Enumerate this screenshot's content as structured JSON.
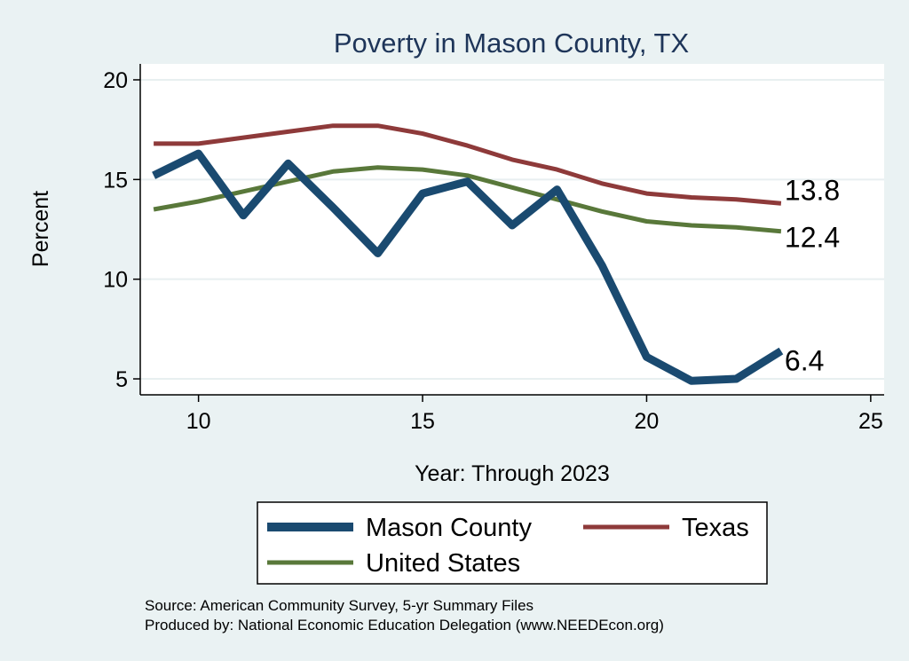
{
  "chart_data": {
    "type": "line",
    "title": "Poverty in Mason County, TX",
    "xlabel": "Year: Through 2023",
    "ylabel": "Percent",
    "xlim": [
      8.7,
      25.3
    ],
    "ylim": [
      4.2,
      20.8
    ],
    "xticks": [
      10,
      15,
      20,
      25
    ],
    "yticks": [
      5,
      10,
      15,
      20
    ],
    "grid": true,
    "x": [
      9,
      10,
      11,
      12,
      13,
      14,
      15,
      16,
      17,
      18,
      19,
      20,
      21,
      22,
      23
    ],
    "series": [
      {
        "name": "Mason County",
        "color": "#1a4a70",
        "width": 9,
        "values": [
          15.2,
          16.3,
          13.2,
          15.8,
          13.6,
          11.3,
          14.3,
          14.9,
          12.7,
          14.5,
          10.7,
          6.1,
          4.9,
          5.0,
          6.4
        ],
        "end_label": "6.4"
      },
      {
        "name": "Texas",
        "color": "#8e3a3a",
        "width": 5,
        "values": [
          16.8,
          16.8,
          17.1,
          17.4,
          17.7,
          17.7,
          17.3,
          16.7,
          16.0,
          15.5,
          14.8,
          14.3,
          14.1,
          14.0,
          13.8
        ],
        "end_label": "13.8"
      },
      {
        "name": "United States",
        "color": "#59783a",
        "width": 5,
        "values": [
          13.5,
          13.9,
          14.4,
          14.9,
          15.4,
          15.6,
          15.5,
          15.2,
          14.6,
          14.0,
          13.4,
          12.9,
          12.7,
          12.6,
          12.4
        ],
        "end_label": "12.4"
      }
    ],
    "legend": {
      "position": "bottom",
      "entries": [
        "Mason County",
        "Texas",
        "United States"
      ]
    }
  },
  "notes": {
    "source": "Source: American Community Survey, 5-yr Summary Files",
    "produced": "Produced by: National Economic Education Delegation (www.NEEDEcon.org)"
  }
}
